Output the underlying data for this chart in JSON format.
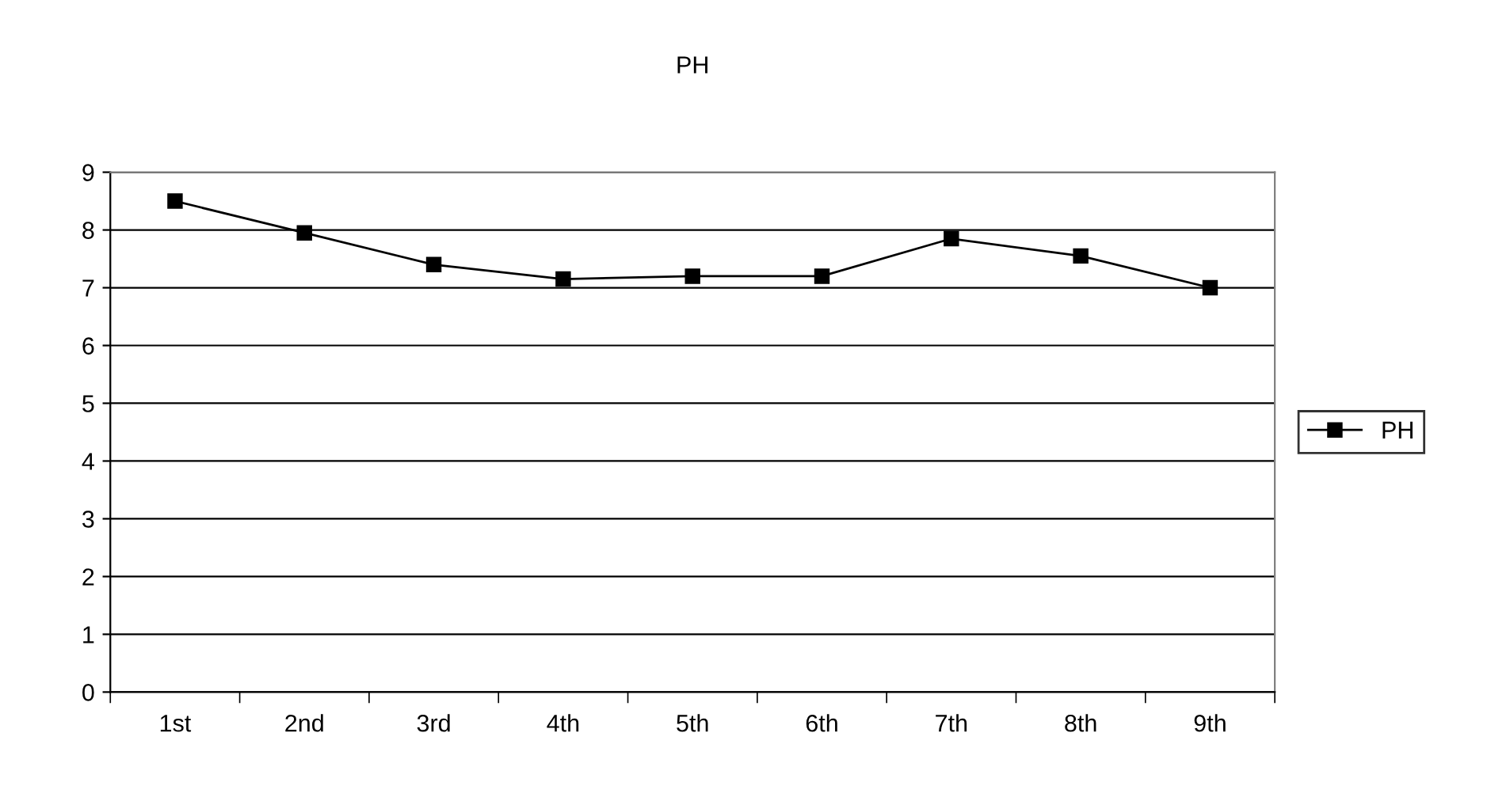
{
  "chart_data": {
    "type": "line",
    "title": "PH",
    "categories": [
      "1st",
      "2nd",
      "3rd",
      "4th",
      "5th",
      "6th",
      "7th",
      "8th",
      "9th"
    ],
    "series": [
      {
        "name": "PH",
        "color": "#000000",
        "values": [
          8.5,
          7.95,
          7.4,
          7.15,
          7.2,
          7.2,
          7.85,
          7.55,
          7.0
        ]
      }
    ],
    "ylim": [
      0,
      9
    ],
    "yticks": [
      0,
      1,
      2,
      3,
      4,
      5,
      6,
      7,
      8,
      9
    ],
    "grid": "y",
    "legend": "right",
    "marker": "square",
    "line_style": "solid"
  }
}
